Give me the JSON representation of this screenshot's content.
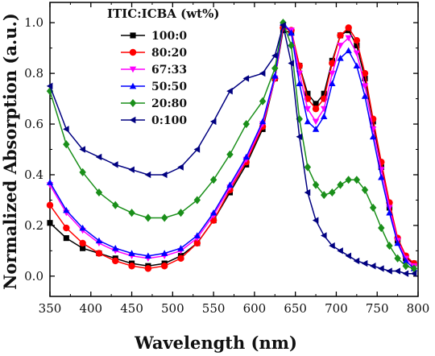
{
  "chart_data": {
    "type": "line",
    "xlabel": "Wavelength (nm)",
    "ylabel": "Normalized Absorption (a.u.)",
    "xlim": [
      350,
      800
    ],
    "ylim": [
      -0.08,
      1.08
    ],
    "xticks": [
      350,
      400,
      450,
      500,
      550,
      600,
      650,
      700,
      750,
      800
    ],
    "yticks": [
      0.0,
      0.2,
      0.4,
      0.6,
      0.8,
      1.0
    ],
    "ytick_labels": [
      "0.0",
      "0.2",
      "0.4",
      "0.6",
      "0.8",
      "1.0"
    ],
    "grid": false,
    "legend_title": "ITIC:ICBA (wt%)",
    "legend_position": "top-right",
    "series": [
      {
        "name": "100:0",
        "color": "#000000",
        "marker": "square",
        "x": [
          350,
          370,
          390,
          410,
          430,
          450,
          470,
          490,
          510,
          530,
          550,
          570,
          590,
          610,
          625,
          635,
          645,
          655,
          665,
          675,
          685,
          695,
          705,
          715,
          725,
          735,
          745,
          755,
          765,
          775,
          785,
          795
        ],
        "y": [
          0.21,
          0.15,
          0.11,
          0.09,
          0.07,
          0.05,
          0.04,
          0.05,
          0.08,
          0.13,
          0.22,
          0.33,
          0.44,
          0.58,
          0.78,
          0.97,
          0.96,
          0.83,
          0.72,
          0.68,
          0.72,
          0.85,
          0.95,
          0.97,
          0.91,
          0.78,
          0.61,
          0.43,
          0.27,
          0.14,
          0.07,
          0.05
        ]
      },
      {
        "name": "80:20",
        "color": "#ff0000",
        "marker": "circle",
        "x": [
          350,
          370,
          390,
          410,
          430,
          450,
          470,
          490,
          510,
          530,
          550,
          570,
          590,
          610,
          625,
          635,
          645,
          655,
          665,
          675,
          685,
          695,
          705,
          715,
          725,
          735,
          745,
          755,
          765,
          775,
          785,
          795
        ],
        "y": [
          0.28,
          0.19,
          0.13,
          0.09,
          0.06,
          0.04,
          0.03,
          0.04,
          0.07,
          0.13,
          0.22,
          0.34,
          0.45,
          0.59,
          0.78,
          0.98,
          0.97,
          0.83,
          0.7,
          0.66,
          0.7,
          0.84,
          0.95,
          0.98,
          0.93,
          0.8,
          0.62,
          0.45,
          0.29,
          0.15,
          0.08,
          0.05
        ]
      },
      {
        "name": "67:33",
        "color": "#ff00ff",
        "marker": "triangle-down",
        "x": [
          350,
          370,
          390,
          410,
          430,
          450,
          470,
          490,
          510,
          530,
          550,
          570,
          590,
          610,
          625,
          635,
          645,
          655,
          665,
          675,
          685,
          695,
          705,
          715,
          725,
          735,
          745,
          755,
          765,
          775,
          785,
          795
        ],
        "y": [
          0.36,
          0.25,
          0.18,
          0.13,
          0.1,
          0.08,
          0.07,
          0.08,
          0.1,
          0.15,
          0.24,
          0.35,
          0.46,
          0.6,
          0.78,
          0.99,
          0.97,
          0.8,
          0.66,
          0.61,
          0.66,
          0.8,
          0.91,
          0.94,
          0.88,
          0.75,
          0.58,
          0.42,
          0.27,
          0.14,
          0.07,
          0.04
        ]
      },
      {
        "name": "50:50",
        "color": "#0000ff",
        "marker": "triangle-up",
        "x": [
          350,
          370,
          390,
          410,
          430,
          450,
          470,
          490,
          510,
          530,
          550,
          570,
          590,
          610,
          625,
          635,
          645,
          655,
          665,
          675,
          685,
          695,
          705,
          715,
          725,
          735,
          745,
          755,
          765,
          775,
          785,
          795
        ],
        "y": [
          0.37,
          0.26,
          0.19,
          0.14,
          0.11,
          0.09,
          0.08,
          0.09,
          0.11,
          0.16,
          0.25,
          0.36,
          0.47,
          0.61,
          0.79,
          1.0,
          0.96,
          0.76,
          0.61,
          0.58,
          0.63,
          0.76,
          0.86,
          0.89,
          0.83,
          0.71,
          0.55,
          0.39,
          0.25,
          0.13,
          0.06,
          0.03
        ]
      },
      {
        "name": "20:80",
        "color": "#1a8f1a",
        "marker": "diamond",
        "x": [
          350,
          370,
          390,
          410,
          430,
          450,
          470,
          490,
          510,
          530,
          550,
          570,
          590,
          610,
          625,
          635,
          645,
          655,
          665,
          675,
          685,
          695,
          705,
          715,
          725,
          735,
          745,
          755,
          765,
          775,
          785,
          795
        ],
        "y": [
          0.73,
          0.52,
          0.41,
          0.33,
          0.28,
          0.25,
          0.23,
          0.23,
          0.25,
          0.3,
          0.38,
          0.48,
          0.6,
          0.69,
          0.82,
          1.0,
          0.91,
          0.62,
          0.43,
          0.36,
          0.32,
          0.33,
          0.36,
          0.38,
          0.38,
          0.34,
          0.27,
          0.19,
          0.12,
          0.07,
          0.04,
          0.03
        ]
      },
      {
        "name": "0:100",
        "color": "#000080",
        "marker": "triangle-left",
        "x": [
          350,
          370,
          390,
          410,
          430,
          450,
          470,
          490,
          510,
          530,
          550,
          570,
          590,
          610,
          625,
          635,
          645,
          655,
          665,
          675,
          685,
          695,
          705,
          715,
          725,
          735,
          745,
          755,
          765,
          775,
          785,
          795
        ],
        "y": [
          0.75,
          0.58,
          0.5,
          0.47,
          0.44,
          0.42,
          0.4,
          0.4,
          0.43,
          0.5,
          0.61,
          0.73,
          0.78,
          0.8,
          0.87,
          0.99,
          0.84,
          0.55,
          0.33,
          0.22,
          0.16,
          0.12,
          0.1,
          0.08,
          0.06,
          0.05,
          0.04,
          0.03,
          0.02,
          0.02,
          0.01,
          0.01
        ]
      }
    ]
  }
}
